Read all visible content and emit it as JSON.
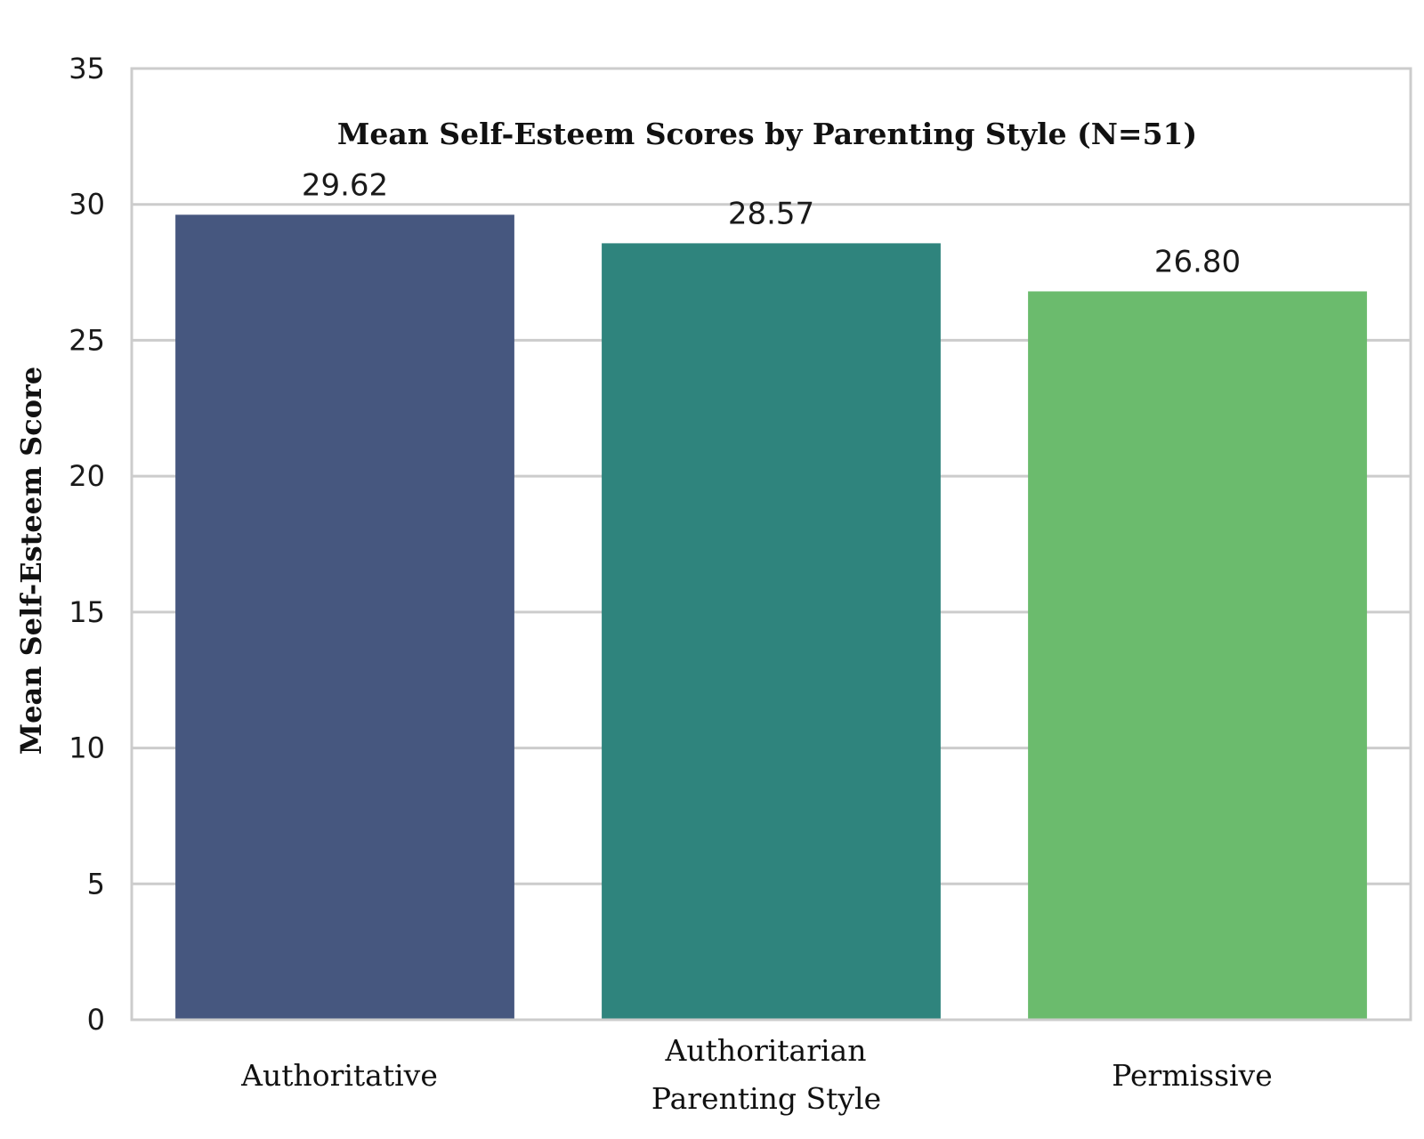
{
  "chart_data": {
    "type": "bar",
    "title": "Mean Self-Esteem Scores by Parenting Style (N=51)",
    "xlabel": "Parenting Style",
    "ylabel": "Mean Self-Esteem Score",
    "categories": [
      "Authoritative",
      "Authoritarian",
      "Permissive"
    ],
    "values": [
      29.62,
      28.57,
      26.8
    ],
    "value_labels": [
      "29.62",
      "28.57",
      "26.80"
    ],
    "colors": [
      "#46577f",
      "#2f847d",
      "#6bbb6d"
    ],
    "ylim": [
      0,
      35
    ],
    "yticks": [
      0,
      5,
      10,
      15,
      20,
      25,
      30,
      35
    ],
    "grid": "horizontal",
    "legend": "none"
  }
}
